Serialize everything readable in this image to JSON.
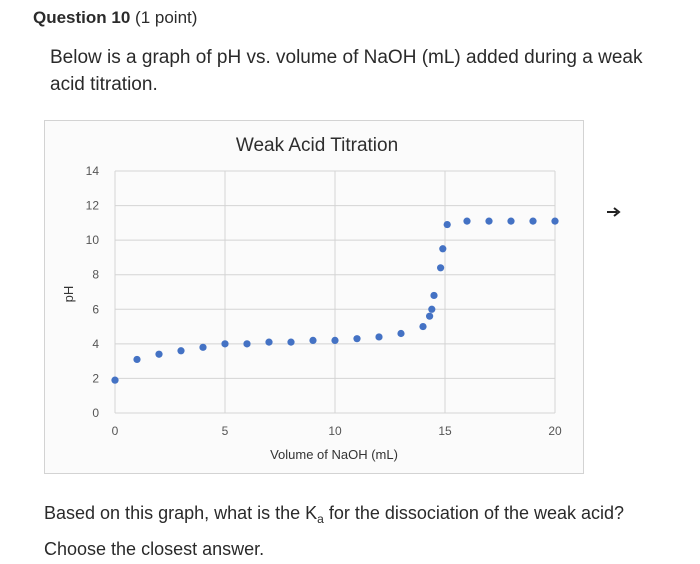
{
  "question": {
    "title": "Question 10",
    "points": "(1 point)",
    "prompt": "Below is a graph of pH vs. volume of NaOH (mL) added during a weak acid titration."
  },
  "followup": {
    "text_before": "Based on this graph, what is the K",
    "subscript": "a",
    "text_after": " for the dissociation of the weak acid?",
    "line2": "Choose the closest answer."
  },
  "chart_data": {
    "type": "scatter",
    "title": "Weak Acid Titration",
    "xlabel": "Volume of NaOH (mL)",
    "ylabel": "pH",
    "xlim": [
      0,
      20
    ],
    "ylim": [
      0,
      14
    ],
    "xticks": [
      "0",
      "5",
      "10",
      "15",
      "20"
    ],
    "yticks": [
      "0",
      "2",
      "4",
      "6",
      "8",
      "10",
      "12",
      "14"
    ],
    "grid": true,
    "point_color": "#4472c4",
    "x": [
      0,
      1,
      2,
      3,
      4,
      5,
      6,
      7,
      8,
      9,
      10,
      11,
      12,
      13,
      14,
      14.3,
      14.4,
      14.5,
      14.8,
      14.9,
      15.1,
      16,
      17,
      18,
      19,
      20
    ],
    "y": [
      1.9,
      3.1,
      3.4,
      3.6,
      3.8,
      4.0,
      4.0,
      4.1,
      4.1,
      4.2,
      4.2,
      4.3,
      4.4,
      4.6,
      5.0,
      5.6,
      6.0,
      6.8,
      8.4,
      9.5,
      10.9,
      11.1,
      11.1,
      11.1,
      11.1,
      11.1
    ]
  }
}
